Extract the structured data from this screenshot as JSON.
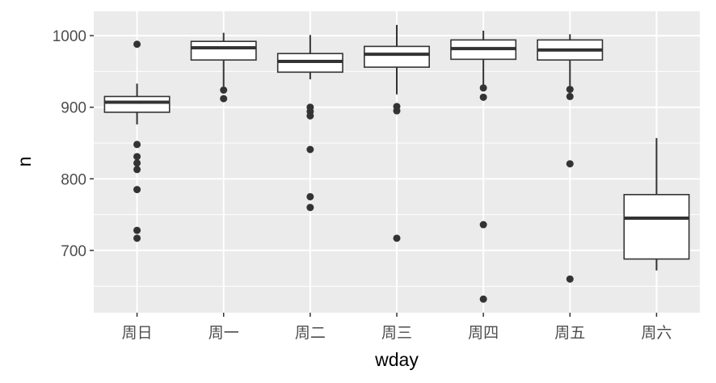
{
  "chart_data": {
    "type": "boxplot",
    "title": "",
    "xlabel": "wday",
    "ylabel": "n",
    "ylim": [
      613,
      1034
    ],
    "yticks": [
      700,
      800,
      900,
      1000
    ],
    "grid": true,
    "categories": [
      "周日",
      "周一",
      "周二",
      "周三",
      "周四",
      "周五",
      "周六"
    ],
    "boxes": [
      {
        "lower_whisker": 876,
        "q1": 893,
        "median": 907,
        "q3": 915,
        "upper_whisker": 933,
        "outliers": [
          988,
          848,
          831,
          822,
          813,
          785,
          728,
          717
        ]
      },
      {
        "lower_whisker": 929,
        "q1": 966,
        "median": 983,
        "q3": 992,
        "upper_whisker": 1004,
        "outliers": [
          924,
          912
        ]
      },
      {
        "lower_whisker": 939,
        "q1": 949,
        "median": 964,
        "q3": 975,
        "upper_whisker": 1001,
        "outliers": [
          900,
          894,
          888,
          841,
          775,
          760
        ]
      },
      {
        "lower_whisker": 918,
        "q1": 956,
        "median": 974,
        "q3": 985,
        "upper_whisker": 1015,
        "outliers": [
          901,
          895,
          717
        ]
      },
      {
        "lower_whisker": 932,
        "q1": 967,
        "median": 982,
        "q3": 994,
        "upper_whisker": 1007,
        "outliers": [
          927,
          914,
          736,
          632
        ]
      },
      {
        "lower_whisker": 930,
        "q1": 966,
        "median": 980,
        "q3": 994,
        "upper_whisker": 1002,
        "outliers": [
          925,
          915,
          821,
          660
        ]
      },
      {
        "lower_whisker": 672,
        "q1": 688,
        "median": 745,
        "q3": 778,
        "upper_whisker": 857,
        "outliers": []
      }
    ],
    "colors": {
      "panel": "#EBEBEB",
      "grid": "#FFFFFF",
      "box_fill": "#FFFFFF",
      "box_line": "#333333"
    }
  }
}
